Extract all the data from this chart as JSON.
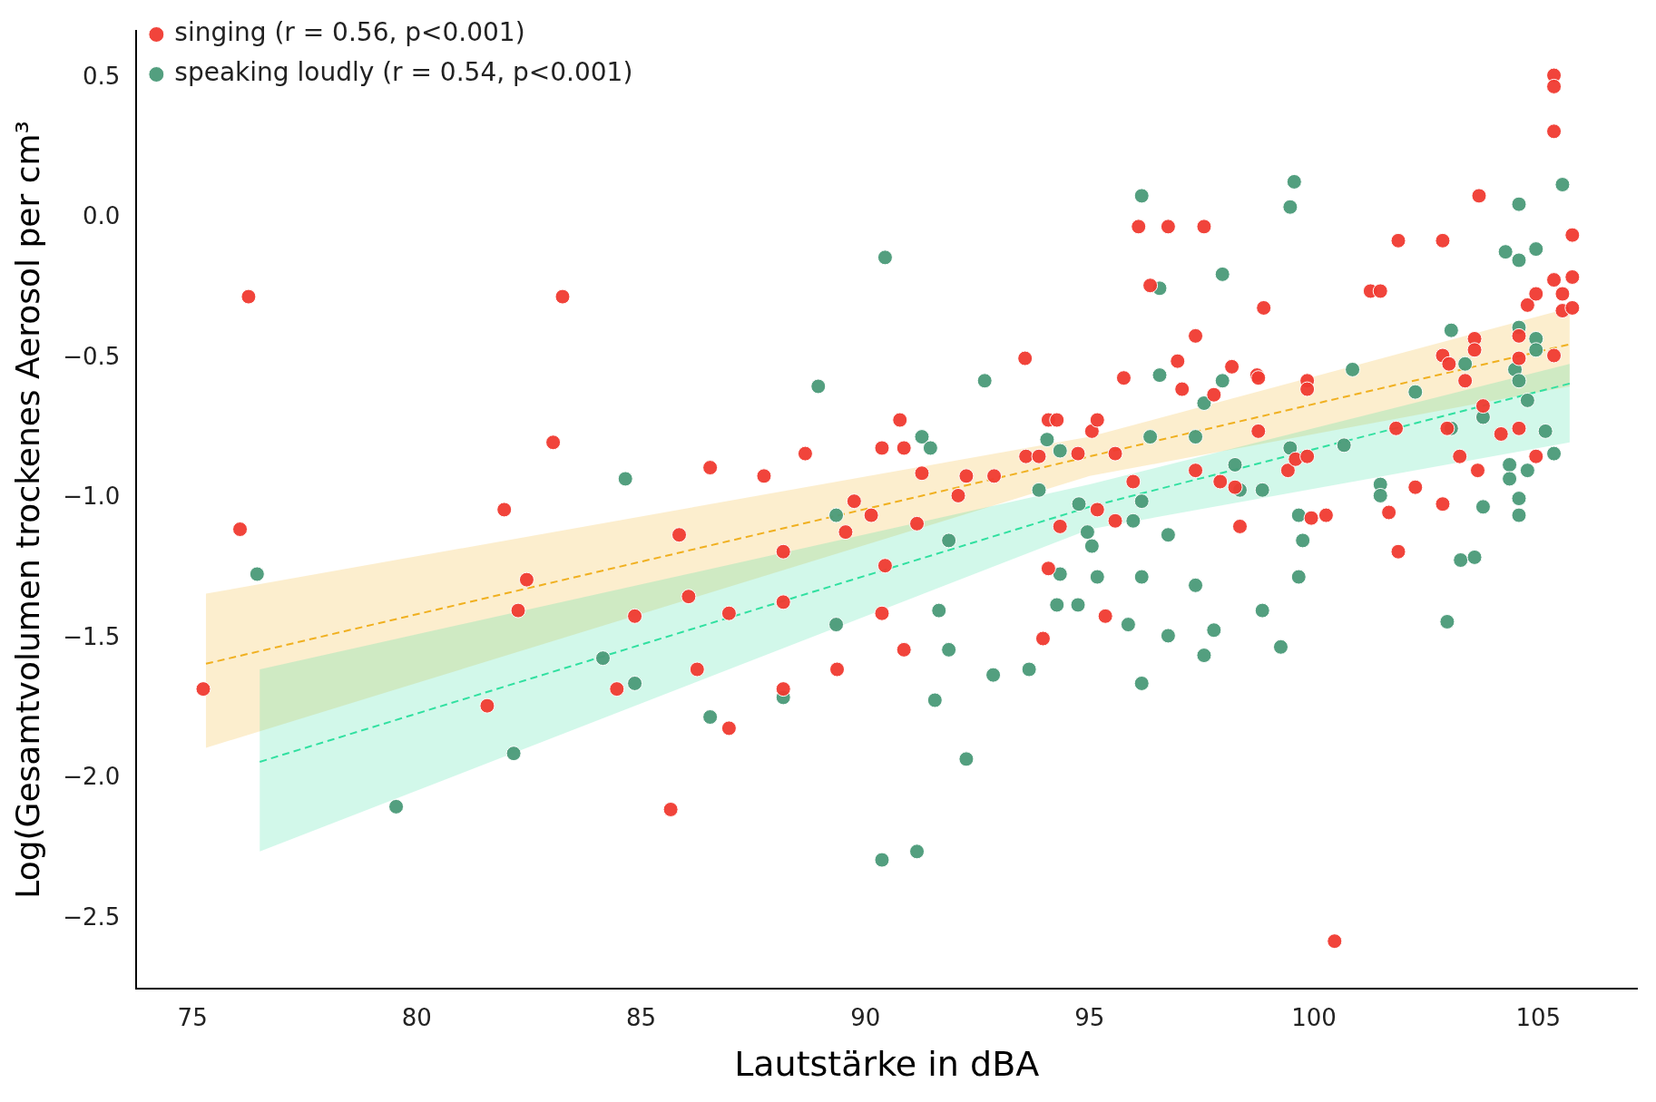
{
  "chart_data": {
    "type": "scatter",
    "xlabel": "Lautstärke in dBA",
    "ylabel": "Log(Gesamtvolumen trockenes Aerosol per cm³",
    "xlim": [
      73.75,
      107.2
    ],
    "ylim": [
      -2.75,
      0.67
    ],
    "xticks": [
      75,
      80,
      85,
      90,
      95,
      100,
      105
    ],
    "yticks": [
      -2.5,
      {
        "value": -2,
        "label": "−2.0"
      },
      -1.5,
      {
        "value": -1,
        "label": "−1.0"
      },
      -0.5,
      {
        "value": 0,
        "label": "0.0"
      },
      0.5
    ],
    "grid": false,
    "legend": "top left",
    "marker": "circle",
    "series": [
      {
        "name": "singing (r = 0.56, p<0.001)",
        "color": "#f03a30",
        "x": [
          75.24,
          76.06,
          76.25,
          81.57,
          81.95,
          82.26,
          82.45,
          83.04,
          83.25,
          84.46,
          84.86,
          85.66,
          85.85,
          86.06,
          86.25,
          86.54,
          86.96,
          86.96,
          87.74,
          88.17,
          88.17,
          88.17,
          88.66,
          89.37,
          89.56,
          89.75,
          90.13,
          90.37,
          90.37,
          90.44,
          90.77,
          90.86,
          90.86,
          91.15,
          91.26,
          92.07,
          92.25,
          92.87,
          93.56,
          93.58,
          93.87,
          94.08,
          94.27,
          93.96,
          94.08,
          94.34,
          94.74,
          95.05,
          95.17,
          95.17,
          95.35,
          95.57,
          95.57,
          95.76,
          95.97,
          96.09,
          96.35,
          96.75,
          96.96,
          97.06,
          97.36,
          97.36,
          97.55,
          97.77,
          97.91,
          98.17,
          98.24,
          98.35,
          98.73,
          98.76,
          98.76,
          98.88,
          99.42,
          99.59,
          99.85,
          99.85,
          99.85,
          99.94,
          100.27,
          100.46,
          101.26,
          101.48,
          101.67,
          101.83,
          101.88,
          101.88,
          102.26,
          102.87,
          102.87,
          102.87,
          102.97,
          103.01,
          103.25,
          103.37,
          103.58,
          103.58,
          103.65,
          103.68,
          103.77,
          104.17,
          104.57,
          104.57,
          104.57,
          104.76,
          104.95,
          104.95,
          105.35,
          105.35,
          105.35,
          105.35,
          105.35,
          105.54,
          105.54,
          105.76,
          105.76,
          105.76
        ],
        "values": [
          -1.68,
          -1.11,
          -0.28,
          -1.74,
          -1.04,
          -1.4,
          -1.29,
          -0.8,
          -0.28,
          -1.68,
          -1.42,
          -2.11,
          -1.13,
          -1.35,
          -1.61,
          -0.89,
          -1.41,
          -1.82,
          -0.92,
          -1.19,
          -1.37,
          -1.68,
          -0.84,
          -1.61,
          -1.12,
          -1.01,
          -1.06,
          -0.82,
          -1.41,
          -1.24,
          -0.72,
          -0.82,
          -1.54,
          -1.09,
          -0.91,
          -0.99,
          -0.92,
          -0.92,
          -0.5,
          -0.85,
          -0.85,
          -0.72,
          -0.72,
          -1.5,
          -1.25,
          -1.1,
          -0.84,
          -0.76,
          -0.72,
          -1.04,
          -1.42,
          -0.84,
          -1.08,
          -0.57,
          -0.94,
          -0.03,
          -0.24,
          -0.03,
          -0.51,
          -0.61,
          -0.42,
          -0.9,
          -0.03,
          -0.63,
          -0.94,
          -0.53,
          -0.96,
          -1.1,
          -0.56,
          -0.57,
          -0.76,
          -0.32,
          -0.9,
          -0.86,
          -0.58,
          -0.61,
          -0.85,
          -1.07,
          -1.06,
          -2.58,
          -0.26,
          -0.26,
          -1.05,
          -0.75,
          -0.08,
          -1.19,
          -0.96,
          -0.08,
          -0.49,
          -1.02,
          -0.75,
          -0.52,
          -0.85,
          -0.58,
          -0.43,
          -0.47,
          -0.9,
          0.08,
          -0.67,
          -0.77,
          -0.42,
          -0.5,
          -0.75,
          -0.31,
          -0.27,
          -0.85,
          0.51,
          0.47,
          0.31,
          -0.22,
          -0.49,
          -0.33,
          -0.27,
          -0.06,
          -0.21,
          -0.32
        ]
      },
      {
        "name": "speaking loudly (r = 0.54, p<0.001)",
        "color": "#4a9a78",
        "x": [
          76.44,
          79.54,
          82.16,
          84.15,
          84.65,
          84.86,
          86.54,
          88.17,
          88.95,
          89.35,
          89.35,
          90.44,
          90.37,
          91.15,
          91.26,
          91.45,
          91.55,
          91.64,
          91.86,
          91.86,
          92.25,
          92.66,
          92.85,
          93.65,
          93.87,
          94.05,
          94.27,
          94.34,
          94.34,
          94.74,
          94.76,
          94.95,
          95.05,
          95.17,
          95.86,
          95.97,
          96.16,
          96.16,
          96.16,
          96.16,
          96.35,
          96.56,
          96.56,
          96.75,
          96.75,
          97.36,
          97.36,
          97.55,
          97.55,
          97.77,
          97.96,
          97.96,
          98.24,
          98.35,
          98.85,
          98.85,
          99.26,
          99.47,
          99.56,
          99.47,
          99.66,
          99.66,
          99.75,
          100.67,
          100.86,
          101.48,
          101.48,
          102.26,
          102.97,
          103.06,
          103.06,
          103.27,
          103.37,
          103.58,
          103.77,
          103.77,
          104.27,
          104.36,
          104.36,
          104.48,
          104.57,
          104.57,
          104.57,
          104.57,
          104.57,
          104.57,
          104.76,
          104.76,
          104.95,
          104.95,
          104.95,
          105.16,
          105.35,
          105.54
        ],
        "values": [
          -1.27,
          -2.1,
          -1.91,
          -1.57,
          -0.93,
          -1.66,
          -1.78,
          -1.71,
          -0.6,
          -1.06,
          -1.45,
          -0.14,
          -2.29,
          -2.26,
          -0.78,
          -0.82,
          -1.72,
          -1.4,
          -1.15,
          -1.54,
          -1.93,
          -0.58,
          -1.63,
          -1.61,
          -0.97,
          -0.79,
          -1.38,
          -0.83,
          -1.27,
          -1.38,
          -1.02,
          -1.12,
          -1.17,
          -1.28,
          -1.45,
          -1.08,
          0.08,
          -1.01,
          -1.28,
          -1.66,
          -0.78,
          -0.25,
          -0.56,
          -1.13,
          -1.49,
          -1.31,
          -0.78,
          -0.66,
          -1.56,
          -1.47,
          -0.2,
          -0.58,
          -0.88,
          -0.97,
          -0.97,
          -1.4,
          -1.53,
          0.04,
          0.13,
          -0.82,
          -1.28,
          -1.06,
          -1.15,
          -0.81,
          -0.54,
          -0.95,
          -0.99,
          -0.62,
          -1.44,
          -0.4,
          -0.75,
          -1.22,
          -0.52,
          -1.21,
          -0.71,
          -1.03,
          -0.12,
          -0.88,
          -0.93,
          -0.54,
          0.05,
          -0.15,
          -0.39,
          -0.58,
          -1.0,
          -1.06,
          -0.65,
          -0.9,
          -0.11,
          -0.43,
          -0.47,
          -0.76,
          -0.84,
          0.12
        ]
      },
      {
        "type": "line",
        "marker": "none",
        "color": "#f0b020",
        "line_style": "dashed",
        "x": [
          75.3,
          95,
          105.7
        ],
        "values": [
          -1.59,
          -0.85,
          -0.45
        ],
        "lower": [
          -1.89,
          -0.92,
          -0.6
        ],
        "upper": [
          -1.34,
          -0.78,
          -0.32
        ]
      },
      {
        "type": "line",
        "marker": "none",
        "color": "#30e0a0",
        "line_style": "dashed",
        "x": [
          76.5,
          95,
          105.7
        ],
        "values": [
          -1.94,
          -1.03,
          -0.59
        ],
        "lower": [
          -2.26,
          -1.11,
          -0.8
        ],
        "upper": [
          -1.61,
          -0.95,
          -0.52
        ]
      }
    ]
  }
}
